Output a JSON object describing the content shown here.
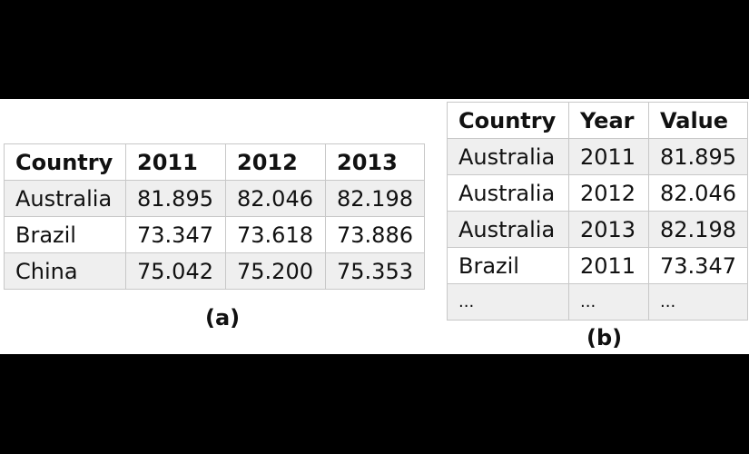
{
  "table_a": {
    "caption": "(a)",
    "headers": [
      "Country",
      "2011",
      "2012",
      "2013"
    ],
    "rows": [
      [
        "Australia",
        "81.895",
        "82.046",
        "82.198"
      ],
      [
        "Brazil",
        "73.347",
        "73.618",
        "73.886"
      ],
      [
        "China",
        "75.042",
        "75.200",
        "75.353"
      ]
    ]
  },
  "table_b": {
    "caption": "(b)",
    "headers": [
      "Country",
      "Year",
      "Value"
    ],
    "rows": [
      [
        "Australia",
        "2011",
        "81.895"
      ],
      [
        "Australia",
        "2012",
        "82.046"
      ],
      [
        "Australia",
        "2013",
        "82.198"
      ],
      [
        "Brazil",
        "2011",
        "73.347"
      ],
      [
        "...",
        "...",
        "..."
      ]
    ]
  }
}
